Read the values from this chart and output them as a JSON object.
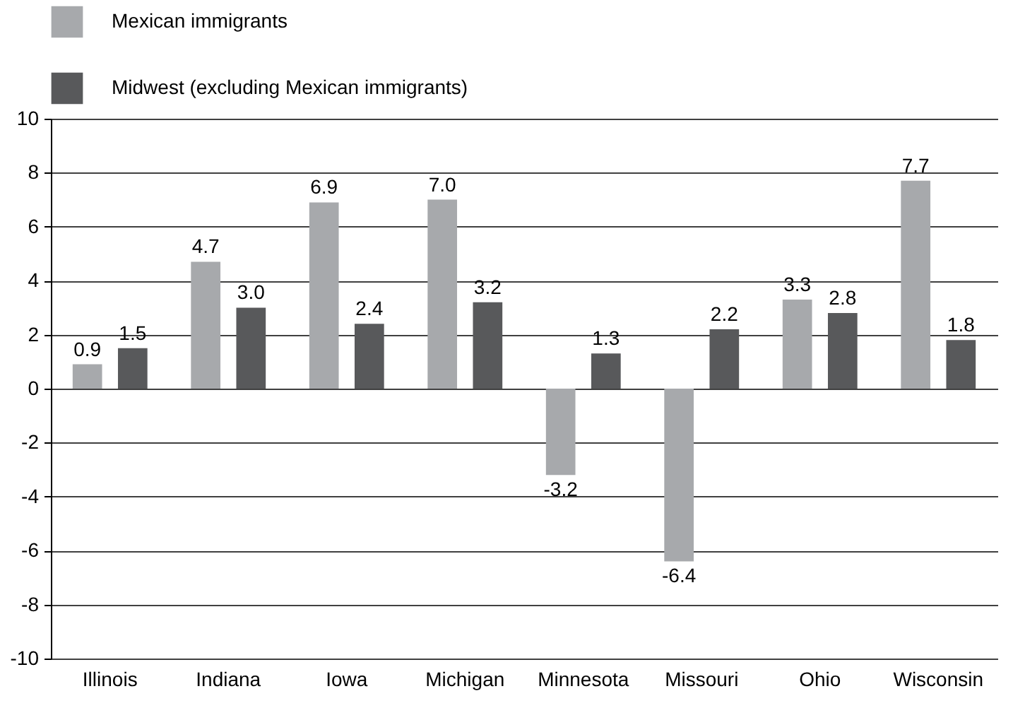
{
  "chart_data": {
    "type": "bar",
    "categories": [
      "Illinois",
      "Indiana",
      "Iowa",
      "Michigan",
      "Minnesota",
      "Missouri",
      "Ohio",
      "Wisconsin"
    ],
    "series": [
      {
        "name": "Mexican immigrants",
        "color": "#a7a9ac",
        "values": [
          0.9,
          4.7,
          6.9,
          7.0,
          -3.2,
          -6.4,
          3.3,
          7.7
        ],
        "value_labels": [
          "0.9",
          "4.7",
          "6.9",
          "7.0",
          "-3.2",
          "-6.4",
          "3.3",
          "7.7"
        ]
      },
      {
        "name": "Midwest (excluding Mexican immigrants)",
        "color": "#58595b",
        "values": [
          1.5,
          3.0,
          2.4,
          3.2,
          1.3,
          2.2,
          2.8,
          1.8
        ],
        "value_labels": [
          "1.5",
          "3.0",
          "2.4",
          "3.2",
          "1.3",
          "2.2",
          "2.8",
          "1.8"
        ]
      }
    ],
    "ylim": [
      -10,
      10
    ],
    "yticks": [
      -10,
      -8,
      -6,
      -4,
      -2,
      0,
      2,
      4,
      6,
      8,
      10
    ],
    "grid": "y",
    "legend": "top left"
  }
}
